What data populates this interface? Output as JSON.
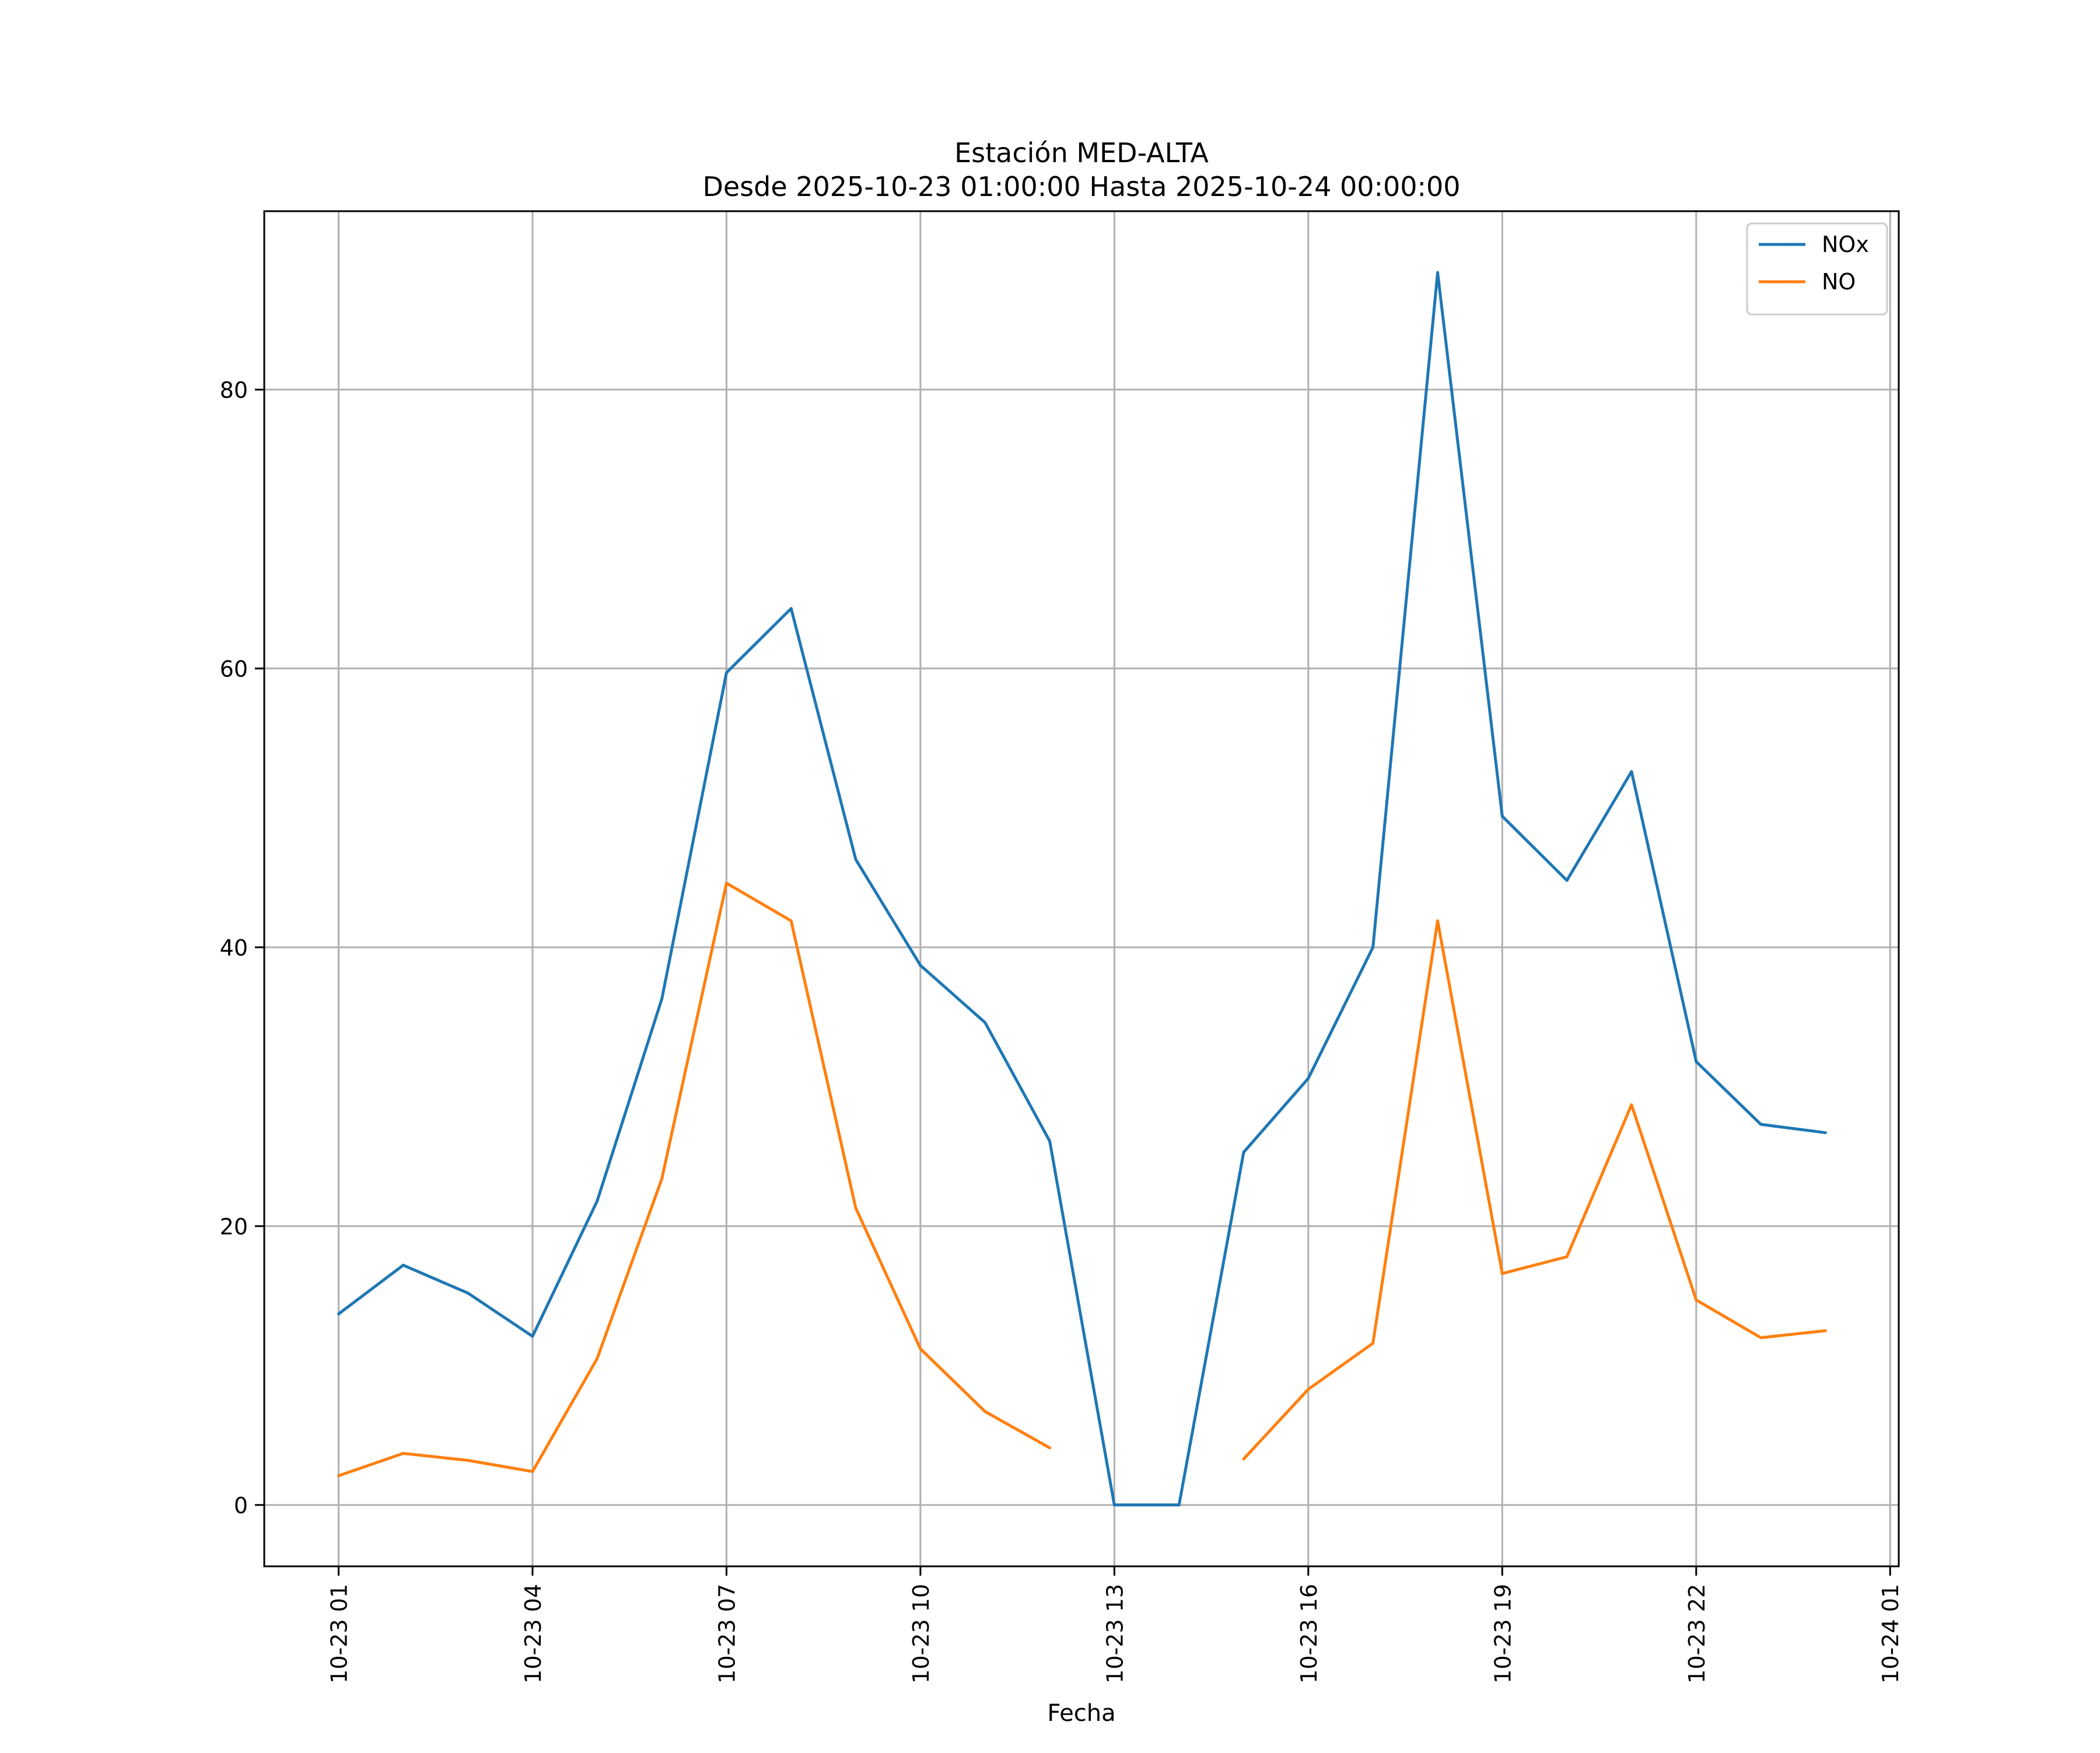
{
  "chart_data": {
    "type": "line",
    "title": "Estación MED-ALTA",
    "subtitle": "Desde 2025-10-23 01:00:00 Hasta 2025-10-24 00:00:00",
    "xlabel": "Fecha",
    "ylabel": "",
    "x": [
      "2025-10-23 01:00",
      "2025-10-23 02:00",
      "2025-10-23 03:00",
      "2025-10-23 04:00",
      "2025-10-23 05:00",
      "2025-10-23 06:00",
      "2025-10-23 07:00",
      "2025-10-23 08:00",
      "2025-10-23 09:00",
      "2025-10-23 10:00",
      "2025-10-23 11:00",
      "2025-10-23 12:00",
      "2025-10-23 13:00",
      "2025-10-23 14:00",
      "2025-10-23 15:00",
      "2025-10-23 16:00",
      "2025-10-23 17:00",
      "2025-10-23 18:00",
      "2025-10-23 19:00",
      "2025-10-23 20:00",
      "2025-10-23 21:00",
      "2025-10-23 22:00",
      "2025-10-23 23:00",
      "2025-10-24 00:00"
    ],
    "xlim": [
      "2025-10-22 23:51",
      "2025-10-24 01:08"
    ],
    "x_tick_values": [
      "2025-10-23 01:00",
      "2025-10-23 04:00",
      "2025-10-23 07:00",
      "2025-10-23 10:00",
      "2025-10-23 13:00",
      "2025-10-23 16:00",
      "2025-10-23 19:00",
      "2025-10-23 22:00",
      "2025-10-24 01:00"
    ],
    "x_tick_labels": [
      "10-23 01",
      "10-23 04",
      "10-23 07",
      "10-23 10",
      "10-23 13",
      "10-23 16",
      "10-23 19",
      "10-23 22",
      "10-24 01"
    ],
    "ylim": [
      -4.4,
      92.8
    ],
    "y_ticks": [
      0,
      20,
      40,
      60,
      80
    ],
    "y_tick_labels": [
      "0",
      "20",
      "40",
      "60",
      "80"
    ],
    "grid": true,
    "legend_position": "top-right",
    "series": [
      {
        "name": "NOx",
        "color": "#1f77b4",
        "values": [
          13.7,
          17.2,
          15.2,
          12.1,
          21.8,
          36.3,
          59.7,
          64.3,
          46.3,
          38.7,
          34.6,
          26.1,
          0,
          0,
          25.3,
          30.6,
          40.0,
          88.4,
          49.4,
          44.8,
          52.6,
          31.8,
          27.3,
          26.7
        ]
      },
      {
        "name": "NO",
        "color": "#ff7f0e",
        "values": [
          2.1,
          3.7,
          3.2,
          2.4,
          10.5,
          23.4,
          44.6,
          41.9,
          21.3,
          11.2,
          6.7,
          4.1,
          null,
          null,
          3.3,
          8.3,
          11.6,
          41.9,
          16.6,
          17.8,
          28.7,
          14.7,
          12.0,
          12.5
        ]
      }
    ]
  }
}
